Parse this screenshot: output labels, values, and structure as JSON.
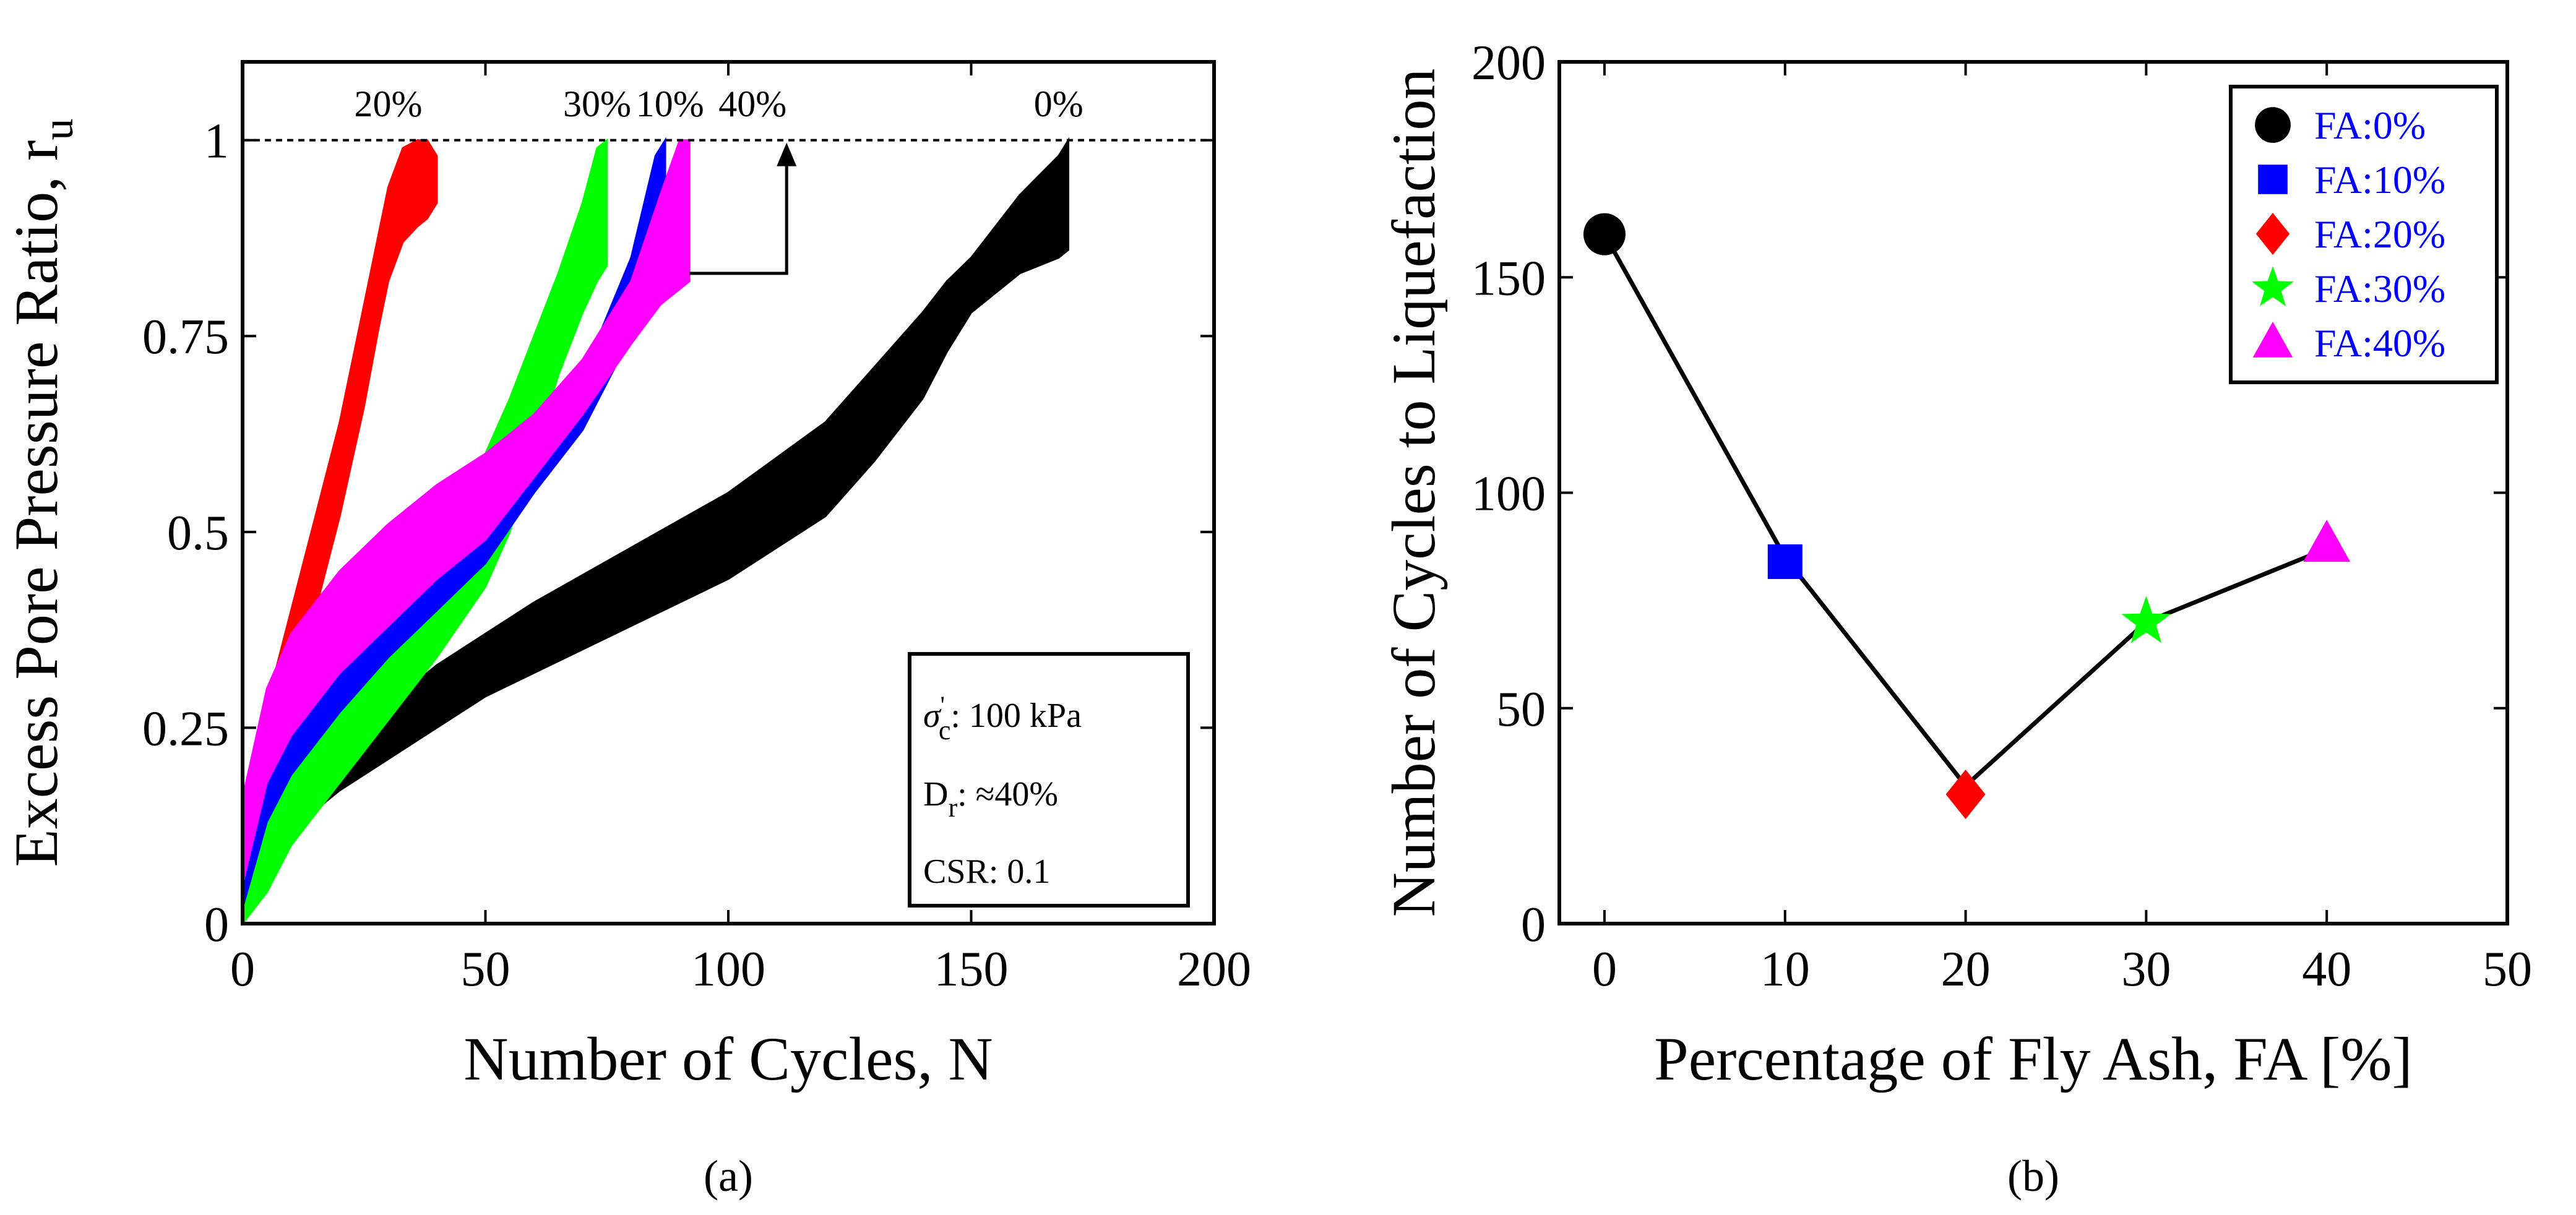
{
  "colors": {
    "fa0": "#000000",
    "fa10": "#0000ff",
    "fa20": "#ff0000",
    "fa30": "#00ff00",
    "fa40": "#ff00ff",
    "legend_text": "#0000ff"
  },
  "panels": {
    "a": "(a)",
    "b": "(b)"
  },
  "chart_data": [
    {
      "type": "area",
      "xlabel": "Number of Cycles, N",
      "ylabel": "Excess Pore Pressure Ratio, r",
      "ylabel_sub": "u",
      "xlim": [
        0,
        200
      ],
      "ylim": [
        0,
        1.1
      ],
      "xticks": [
        0,
        50,
        100,
        150,
        200
      ],
      "yticks": [
        0,
        0.25,
        0.5,
        0.75,
        1
      ],
      "xtick_labels": [
        "0",
        "50",
        "100",
        "150",
        "200"
      ],
      "ytick_labels": [
        "0",
        "0.25",
        "0.5",
        "0.75",
        "1"
      ],
      "reference_line": {
        "y": 1,
        "style": "dotted"
      },
      "series_labels": [
        "20%",
        "30%",
        "10%",
        "40%",
        "0%"
      ],
      "inset": {
        "line1_symbol": "σ",
        "line1_sub": "c",
        "line1_sup": "'",
        "line1_value": ": 100 kPa",
        "line2_symbol": "D",
        "line2_sub": "r",
        "line2_value": ": ≈40%",
        "line3": "CSR: 0.1"
      },
      "series": [
        {
          "name": "0%",
          "color": "#000000",
          "upper": [
            [
              0,
              0.02
            ],
            [
              5,
              0.12
            ],
            [
              10,
              0.18
            ],
            [
              20,
              0.23
            ],
            [
              30,
              0.28
            ],
            [
              40,
              0.33
            ],
            [
              50,
              0.37
            ],
            [
              60,
              0.41
            ],
            [
              80,
              0.48
            ],
            [
              100,
              0.55
            ],
            [
              120,
              0.64
            ],
            [
              130,
              0.71
            ],
            [
              140,
              0.78
            ],
            [
              145,
              0.82
            ],
            [
              150,
              0.85
            ],
            [
              160,
              0.93
            ],
            [
              168,
              0.98
            ],
            [
              170,
              1.0
            ]
          ],
          "lower": [
            [
              0,
              0.0
            ],
            [
              5,
              0.07
            ],
            [
              10,
              0.12
            ],
            [
              20,
              0.17
            ],
            [
              30,
              0.21
            ],
            [
              40,
              0.25
            ],
            [
              50,
              0.29
            ],
            [
              60,
              0.32
            ],
            [
              80,
              0.38
            ],
            [
              100,
              0.44
            ],
            [
              120,
              0.52
            ],
            [
              130,
              0.59
            ],
            [
              140,
              0.67
            ],
            [
              145,
              0.73
            ],
            [
              150,
              0.78
            ],
            [
              160,
              0.83
            ],
            [
              168,
              0.85
            ],
            [
              170,
              0.86
            ]
          ]
        },
        {
          "name": "20%",
          "color": "#ff0000",
          "upper": [
            [
              0,
              0.14
            ],
            [
              5,
              0.28
            ],
            [
              10,
              0.4
            ],
            [
              15,
              0.52
            ],
            [
              20,
              0.64
            ],
            [
              25,
              0.79
            ],
            [
              28,
              0.88
            ],
            [
              30,
              0.94
            ],
            [
              33,
              0.99
            ],
            [
              36,
              1.0
            ],
            [
              38,
              1.0
            ],
            [
              40,
              0.98
            ]
          ],
          "lower": [
            [
              0,
              0.05
            ],
            [
              5,
              0.16
            ],
            [
              10,
              0.28
            ],
            [
              15,
              0.4
            ],
            [
              20,
              0.52
            ],
            [
              25,
              0.66
            ],
            [
              28,
              0.76
            ],
            [
              30,
              0.82
            ],
            [
              33,
              0.87
            ],
            [
              36,
              0.89
            ],
            [
              38,
              0.9
            ],
            [
              40,
              0.92
            ]
          ]
        },
        {
          "name": "30%",
          "color": "#00ff00",
          "upper": [
            [
              0,
              0.08
            ],
            [
              5,
              0.22
            ],
            [
              10,
              0.29
            ],
            [
              20,
              0.37
            ],
            [
              30,
              0.44
            ],
            [
              40,
              0.51
            ],
            [
              50,
              0.6
            ],
            [
              55,
              0.67
            ],
            [
              60,
              0.75
            ],
            [
              65,
              0.83
            ],
            [
              70,
              0.92
            ],
            [
              73,
              0.99
            ],
            [
              75,
              1.0
            ]
          ],
          "lower": [
            [
              0,
              0.0
            ],
            [
              5,
              0.04
            ],
            [
              10,
              0.1
            ],
            [
              20,
              0.18
            ],
            [
              30,
              0.26
            ],
            [
              40,
              0.34
            ],
            [
              50,
              0.43
            ],
            [
              55,
              0.5
            ],
            [
              60,
              0.6
            ],
            [
              65,
              0.7
            ],
            [
              70,
              0.78
            ],
            [
              73,
              0.82
            ],
            [
              75,
              0.84
            ]
          ]
        },
        {
          "name": "10%",
          "color": "#0000ff",
          "upper": [
            [
              0,
              0.12
            ],
            [
              5,
              0.28
            ],
            [
              10,
              0.35
            ],
            [
              20,
              0.43
            ],
            [
              30,
              0.49
            ],
            [
              40,
              0.54
            ],
            [
              50,
              0.59
            ],
            [
              60,
              0.63
            ],
            [
              70,
              0.7
            ],
            [
              80,
              0.85
            ],
            [
              85,
              0.98
            ],
            [
              87,
              1.0
            ]
          ],
          "lower": [
            [
              0,
              0.02
            ],
            [
              5,
              0.13
            ],
            [
              10,
              0.19
            ],
            [
              20,
              0.27
            ],
            [
              30,
              0.34
            ],
            [
              40,
              0.4
            ],
            [
              50,
              0.46
            ],
            [
              60,
              0.55
            ],
            [
              70,
              0.63
            ],
            [
              80,
              0.75
            ],
            [
              85,
              0.81
            ],
            [
              87,
              0.82
            ]
          ]
        },
        {
          "name": "40%",
          "color": "#ff00ff",
          "upper": [
            [
              0,
              0.16
            ],
            [
              5,
              0.3
            ],
            [
              10,
              0.37
            ],
            [
              20,
              0.45
            ],
            [
              30,
              0.51
            ],
            [
              40,
              0.56
            ],
            [
              50,
              0.6
            ],
            [
              60,
              0.65
            ],
            [
              70,
              0.72
            ],
            [
              80,
              0.82
            ],
            [
              86,
              0.93
            ],
            [
              90,
              1.0
            ],
            [
              92,
              1.0
            ]
          ],
          "lower": [
            [
              0,
              0.05
            ],
            [
              5,
              0.18
            ],
            [
              10,
              0.24
            ],
            [
              20,
              0.32
            ],
            [
              30,
              0.38
            ],
            [
              40,
              0.44
            ],
            [
              50,
              0.49
            ],
            [
              60,
              0.57
            ],
            [
              70,
              0.65
            ],
            [
              80,
              0.74
            ],
            [
              86,
              0.79
            ],
            [
              90,
              0.81
            ],
            [
              92,
              0.82
            ]
          ]
        }
      ]
    },
    {
      "type": "line",
      "xlabel": "Percentage of Fly Ash, FA [%]",
      "ylabel": "Number of Cycles to Liquefaction",
      "xlim": [
        -2.5,
        50
      ],
      "ylim": [
        0,
        200
      ],
      "xticks": [
        0,
        10,
        20,
        30,
        40,
        50
      ],
      "yticks": [
        0,
        50,
        100,
        150,
        200
      ],
      "xtick_labels": [
        "0",
        "10",
        "20",
        "30",
        "40",
        "50"
      ],
      "ytick_labels": [
        "0",
        "50",
        "100",
        "150",
        "200"
      ],
      "legend_position": "top-right",
      "line_x": [
        0,
        10,
        20,
        30,
        40
      ],
      "line_y": [
        160,
        85,
        32,
        70,
        87
      ],
      "points": [
        {
          "name": "FA:0%",
          "x": 0,
          "y": 160,
          "marker": "circle",
          "color": "#000000"
        },
        {
          "name": "FA:10%",
          "x": 10,
          "y": 84,
          "marker": "square",
          "color": "#0000ff"
        },
        {
          "name": "FA:20%",
          "x": 20,
          "y": 30,
          "marker": "diamond",
          "color": "#ff0000"
        },
        {
          "name": "FA:30%",
          "x": 30,
          "y": 70,
          "marker": "star",
          "color": "#00ff00"
        },
        {
          "name": "FA:40%",
          "x": 40,
          "y": 88,
          "marker": "triangle",
          "color": "#ff00ff"
        }
      ]
    }
  ]
}
